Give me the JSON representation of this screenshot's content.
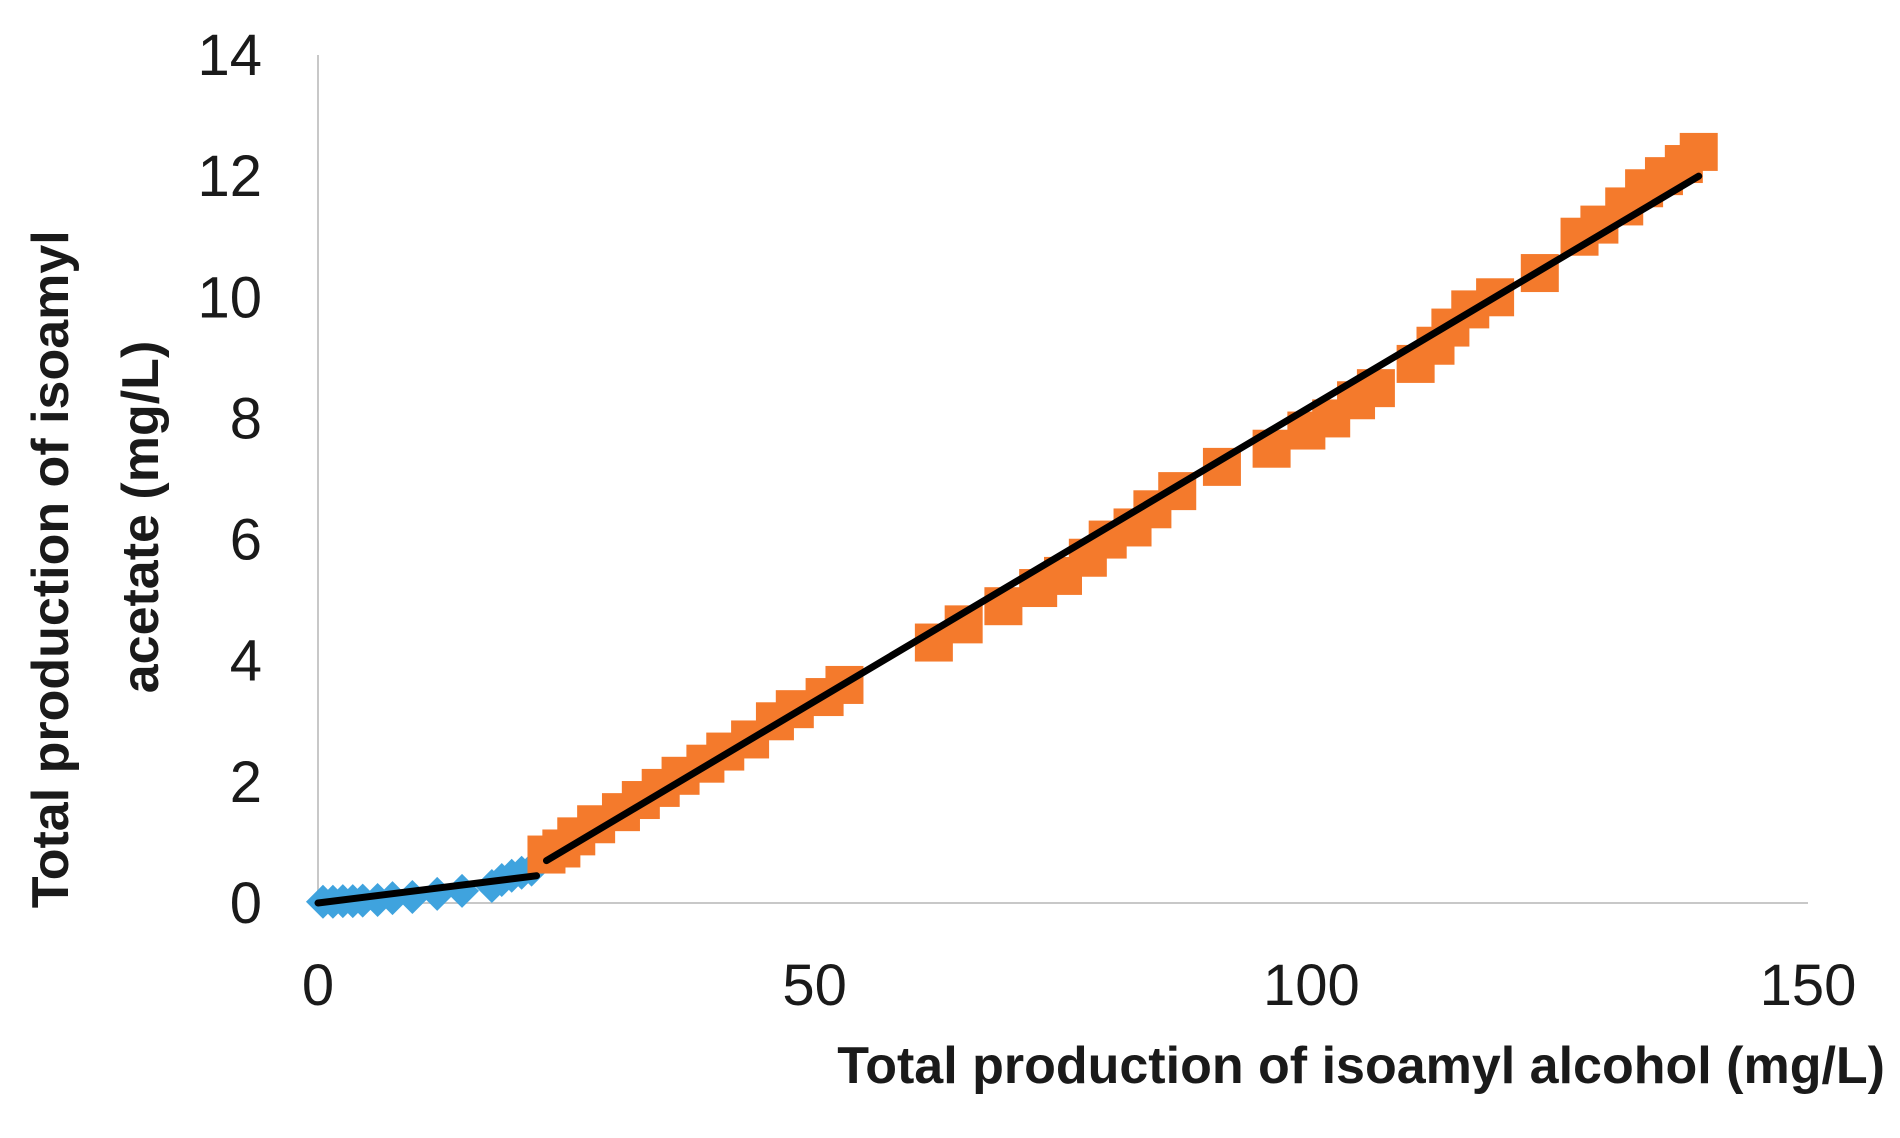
{
  "chart_data": {
    "type": "scatter",
    "title": "",
    "xlabel": "Total production of isoamyl alcohol (mg/L)",
    "ylabel_lines": [
      "Total production of isoamyl",
      "acetate (mg/L)"
    ],
    "xlim": [
      0,
      150
    ],
    "ylim": [
      0,
      14
    ],
    "x_ticks": [
      0,
      50,
      100,
      150
    ],
    "y_ticks": [
      0,
      2,
      4,
      6,
      8,
      10,
      12,
      14
    ],
    "grid": false,
    "legend": "none",
    "series": [
      {
        "marker": "diamond",
        "color": "#3fa3de",
        "x": [
          0.5,
          1.5,
          2.5,
          3.5,
          4.5,
          6,
          7.5,
          9.5,
          12,
          14.5,
          17.5,
          18.5,
          19.5,
          20.5,
          21.5
        ],
        "y": [
          0.02,
          0.02,
          0.03,
          0.03,
          0.04,
          0.05,
          0.08,
          0.1,
          0.15,
          0.2,
          0.28,
          0.38,
          0.45,
          0.5,
          0.55
        ]
      },
      {
        "marker": "square",
        "color": "#f47a2c",
        "x": [
          23,
          24.5,
          26,
          28,
          30.5,
          32.5,
          34.5,
          36.5,
          39,
          41,
          43.5,
          46,
          48,
          51,
          53,
          62,
          65,
          69,
          72.5,
          75,
          77.5,
          79.5,
          82,
          84,
          86.5,
          91,
          96,
          99.5,
          102,
          104.5,
          106.5,
          110.5,
          112.5,
          114,
          116,
          118.5,
          123,
          127,
          129,
          131.5,
          133.5,
          135.5,
          137.5,
          139
        ],
        "y": [
          0.8,
          0.9,
          1.1,
          1.3,
          1.5,
          1.7,
          1.9,
          2.1,
          2.3,
          2.5,
          2.7,
          3.0,
          3.2,
          3.4,
          3.6,
          4.3,
          4.6,
          4.9,
          5.2,
          5.4,
          5.7,
          6.0,
          6.2,
          6.5,
          6.8,
          7.2,
          7.5,
          7.8,
          8.0,
          8.3,
          8.5,
          8.9,
          9.2,
          9.5,
          9.8,
          10.0,
          10.4,
          11.0,
          11.2,
          11.5,
          11.8,
          12.0,
          12.2,
          12.4
        ]
      }
    ],
    "trendlines": [
      {
        "color": "#000000",
        "x": [
          0,
          22
        ],
        "y": [
          0.0,
          0.45
        ]
      },
      {
        "color": "#000000",
        "x": [
          23,
          139
        ],
        "y": [
          0.7,
          12.0
        ]
      }
    ]
  }
}
